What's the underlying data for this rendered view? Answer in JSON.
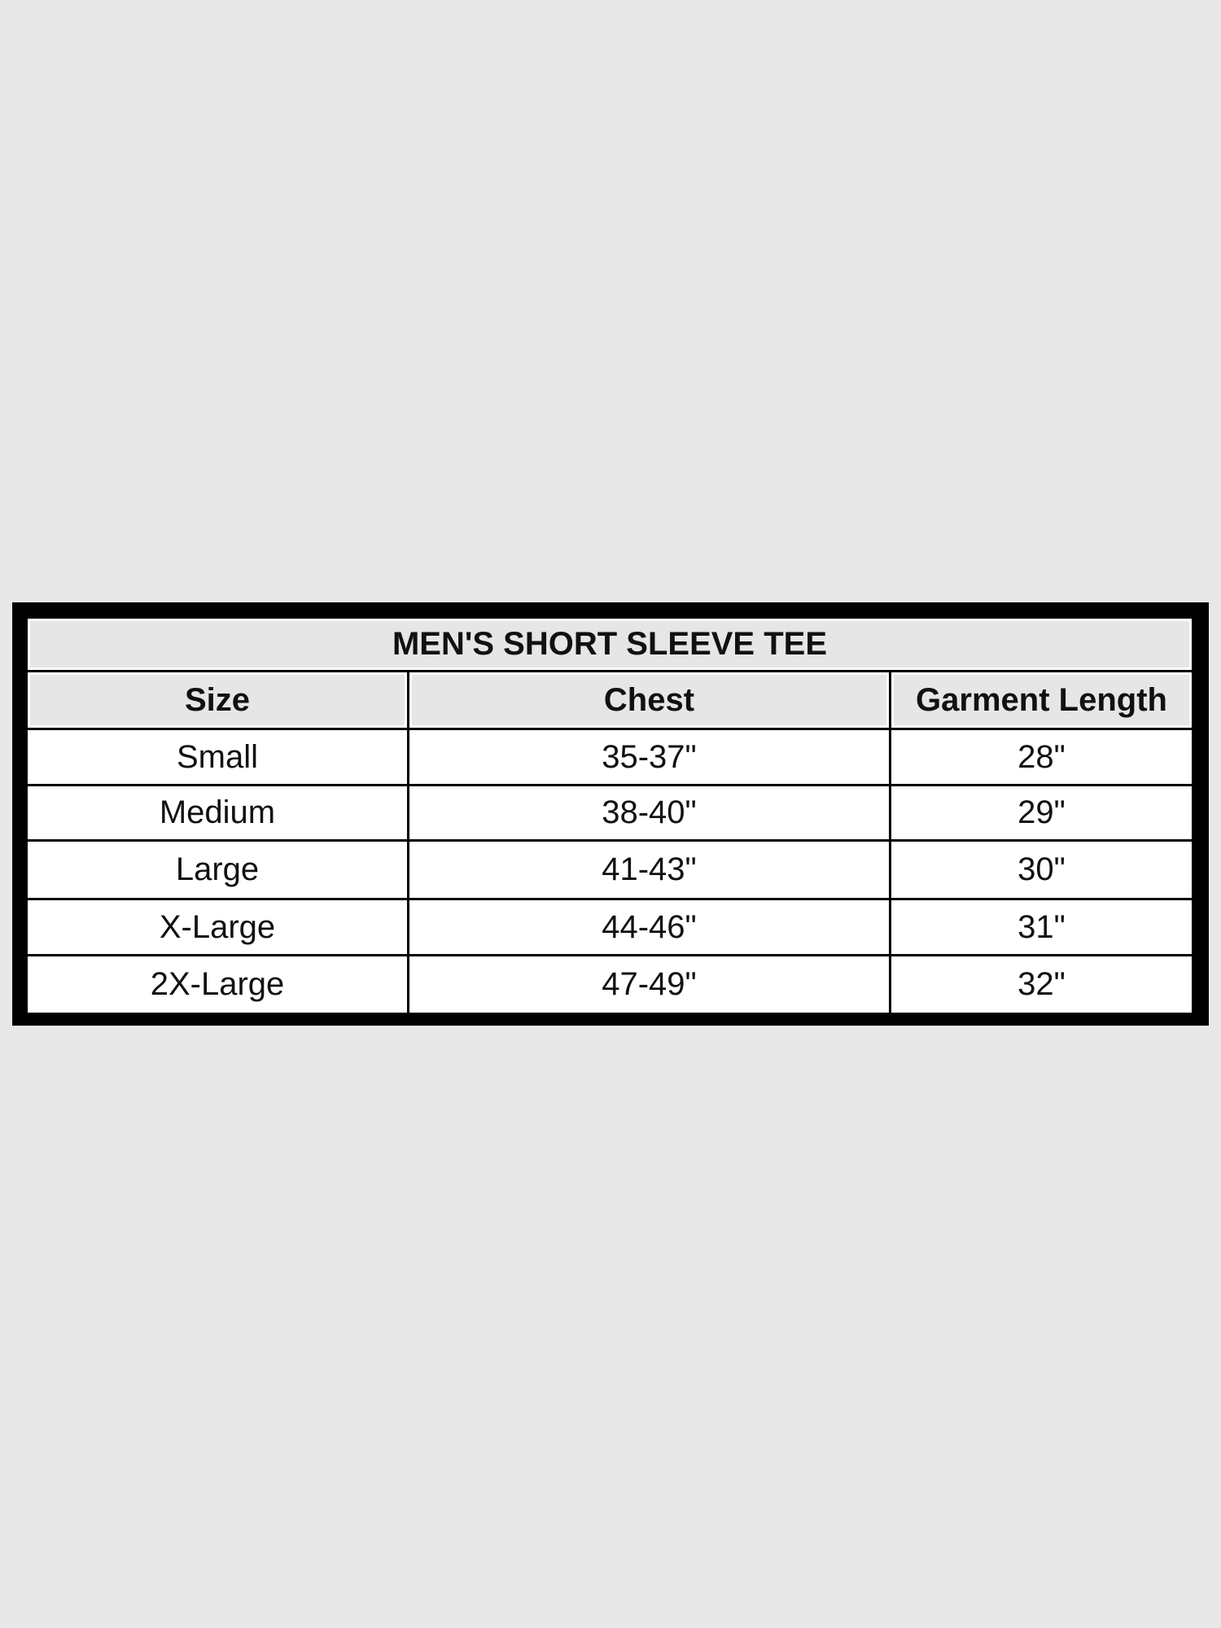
{
  "table": {
    "title": "MEN'S SHORT SLEEVE TEE",
    "headers": [
      "Size",
      "Chest",
      "Garment Length"
    ],
    "rows": [
      [
        "Small",
        "35-37\"",
        "28\""
      ],
      [
        "Medium",
        "38-40\"",
        "29\""
      ],
      [
        "Large",
        "41-43\"",
        "30\""
      ],
      [
        "X-Large",
        "44-46\"",
        "31\""
      ],
      [
        "2X-Large",
        "47-49\"",
        "32\""
      ]
    ]
  },
  "colors": {
    "background": "#e8e8e8",
    "border": "#000000",
    "header_fill": "#e6e6e6",
    "cell_fill": "#ffffff"
  }
}
